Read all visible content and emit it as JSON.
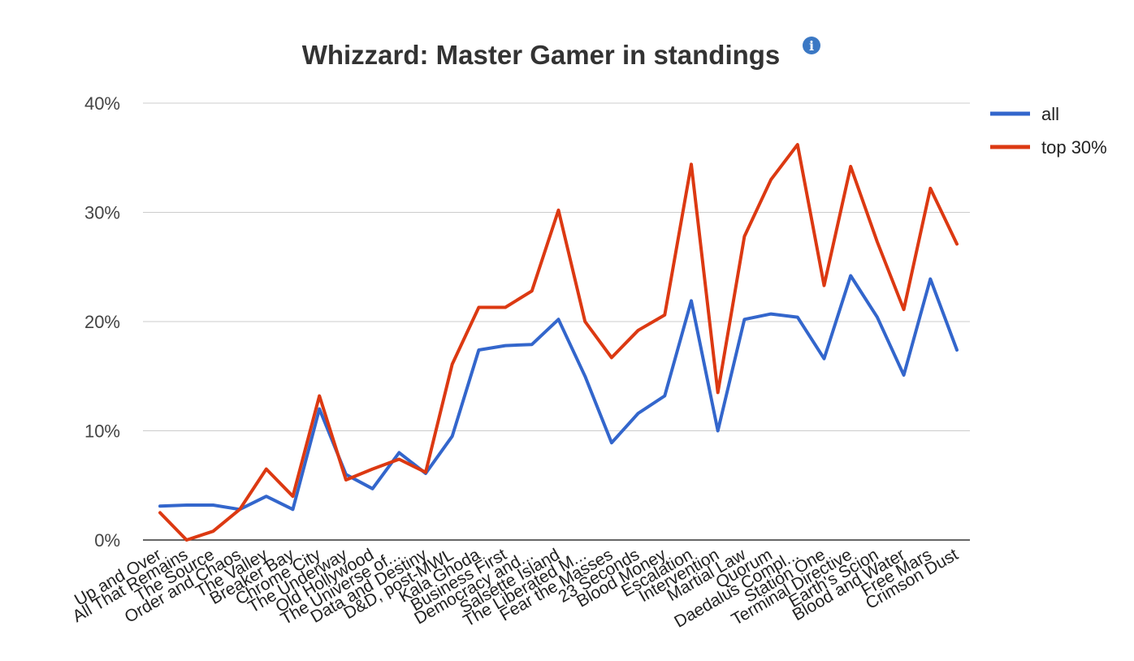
{
  "colors": {
    "all": "#3366cc",
    "top30": "#dc3912",
    "grid": "#cccccc",
    "axis": "#333333",
    "info": "#3b78c4"
  },
  "info_icon": {
    "icon": "info-icon",
    "glyph": "i"
  },
  "chart_data": {
    "type": "line",
    "title": "Whizzard: Master Gamer in standings",
    "xlabel": "",
    "ylabel": "",
    "ylim": [
      0,
      40
    ],
    "y_ticks": [
      0,
      10,
      20,
      30,
      40
    ],
    "y_tick_labels": [
      "0%",
      "10%",
      "20%",
      "30%",
      "40%"
    ],
    "grid": true,
    "legend_position": "right",
    "categories": [
      "Up and Over",
      "All That Remains",
      "The Source",
      "Order and Chaos",
      "The Valley",
      "Breaker Bay",
      "Chrome City",
      "The Underway",
      "Old Hollywood",
      "The Universe of...",
      "Data and Destiny",
      "D&D, post-MWL",
      "Kala Ghoda",
      "Business First",
      "Democracy and...",
      "Salsette Island",
      "The Liberated M...",
      "Fear the Masses",
      "23 Seconds",
      "Blood Money",
      "Escalation",
      "Intervention",
      "Martial Law",
      "Quorum",
      "Daedalus Compl...",
      "Station One",
      "Terminal Directive",
      "Earth's Scion",
      "Blood and Water",
      "Free Mars",
      "Crimson Dust"
    ],
    "series": [
      {
        "name": "all",
        "values": [
          3.1,
          3.2,
          3.2,
          2.8,
          4.0,
          2.8,
          12.0,
          6.0,
          4.7,
          8.0,
          6.1,
          9.5,
          17.4,
          17.8,
          17.9,
          20.2,
          15.0,
          8.9,
          11.6,
          13.2,
          21.9,
          10.0,
          20.2,
          20.7,
          20.4,
          16.6,
          24.2,
          20.4,
          15.1,
          23.9,
          17.4
        ]
      },
      {
        "name": "top 30%",
        "values": [
          2.5,
          0.0,
          0.8,
          2.8,
          6.5,
          4.0,
          13.2,
          5.5,
          6.5,
          7.4,
          6.2,
          16.1,
          21.3,
          21.3,
          22.8,
          30.2,
          20.0,
          16.7,
          19.2,
          20.6,
          34.4,
          13.5,
          27.8,
          33.0,
          36.2,
          23.3,
          34.2,
          27.3,
          21.1,
          32.2,
          27.1
        ]
      }
    ]
  }
}
